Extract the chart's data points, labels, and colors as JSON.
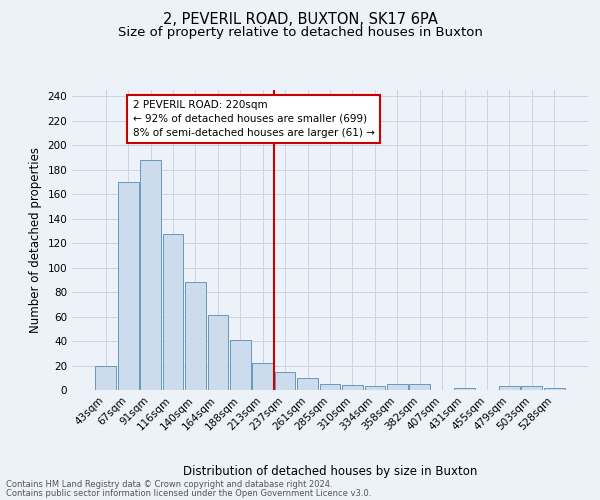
{
  "title": "2, PEVERIL ROAD, BUXTON, SK17 6PA",
  "subtitle": "Size of property relative to detached houses in Buxton",
  "xlabel": "Distribution of detached houses by size in Buxton",
  "ylabel": "Number of detached properties",
  "footnote1": "Contains HM Land Registry data © Crown copyright and database right 2024.",
  "footnote2": "Contains public sector information licensed under the Open Government Licence v3.0.",
  "bin_labels": [
    "43sqm",
    "67sqm",
    "91sqm",
    "116sqm",
    "140sqm",
    "164sqm",
    "188sqm",
    "213sqm",
    "237sqm",
    "261sqm",
    "285sqm",
    "310sqm",
    "334sqm",
    "358sqm",
    "382sqm",
    "407sqm",
    "431sqm",
    "455sqm",
    "479sqm",
    "503sqm",
    "528sqm"
  ],
  "bar_heights": [
    20,
    170,
    188,
    127,
    88,
    61,
    41,
    22,
    15,
    10,
    5,
    4,
    3,
    5,
    5,
    0,
    2,
    0,
    3,
    3,
    2
  ],
  "bar_color": "#ccdcec",
  "bar_edge_color": "#6699bb",
  "vline_x": 7.5,
  "vline_color": "#cc0000",
  "annotation_text": "2 PEVERIL ROAD: 220sqm\n← 92% of detached houses are smaller (699)\n8% of semi-detached houses are larger (61) →",
  "annotation_box_color": "#ffffff",
  "annotation_box_edge": "#cc0000",
  "ylim": [
    0,
    245
  ],
  "yticks": [
    0,
    20,
    40,
    60,
    80,
    100,
    120,
    140,
    160,
    180,
    200,
    220,
    240
  ],
  "grid_color": "#c8d4e4",
  "bg_color": "#edf2f8",
  "title_fontsize": 10.5,
  "subtitle_fontsize": 9.5,
  "axis_label_fontsize": 8.5,
  "tick_fontsize": 7.5,
  "annot_fontsize": 7.5,
  "footnote_fontsize": 6.0
}
